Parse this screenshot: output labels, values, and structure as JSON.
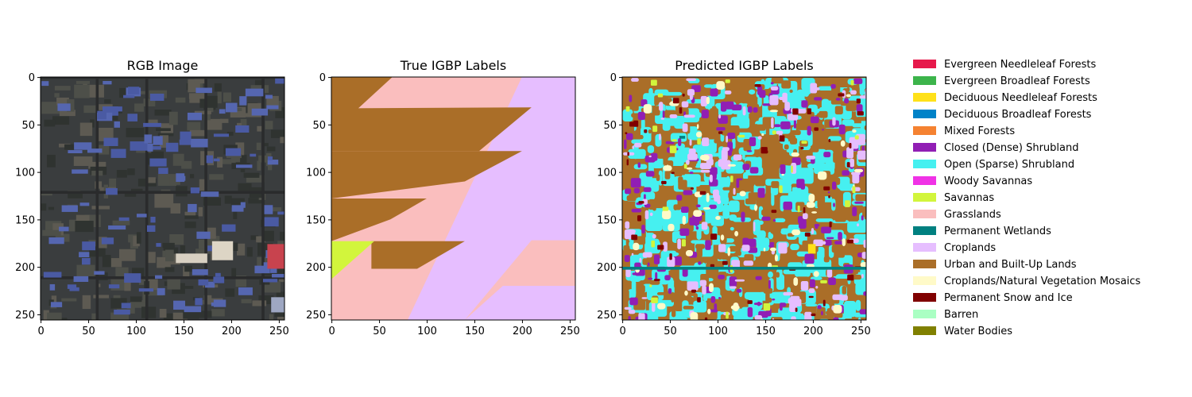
{
  "figure": {
    "panels": [
      {
        "title": "RGB Image"
      },
      {
        "title": "True IGBP Labels"
      },
      {
        "title": "Predicted IGBP Labels"
      }
    ]
  },
  "chart_data": {
    "type": "heatmap",
    "panels": [
      {
        "title": "RGB Image",
        "xticks": [
          0,
          50,
          100,
          150,
          200,
          250
        ],
        "yticks": [
          0,
          50,
          100,
          150,
          200,
          250
        ],
        "xlim": [
          0,
          256
        ],
        "ylim": [
          256,
          0
        ]
      },
      {
        "title": "True IGBP Labels",
        "xticks": [
          0,
          50,
          100,
          150,
          200,
          250
        ],
        "yticks": [
          0,
          50,
          100,
          150,
          200,
          250
        ],
        "xlim": [
          0,
          256
        ],
        "ylim": [
          256,
          0
        ]
      },
      {
        "title": "Predicted IGBP Labels",
        "xticks": [
          0,
          50,
          100,
          150,
          200,
          250
        ],
        "yticks": [
          0,
          50,
          100,
          150,
          200,
          250
        ],
        "xlim": [
          0,
          256
        ],
        "ylim": [
          256,
          0
        ]
      }
    ],
    "legend": [
      {
        "label": "Evergreen Needleleaf Forests",
        "color": "#e6194b"
      },
      {
        "label": "Evergreen Broadleaf Forests",
        "color": "#3cb44b"
      },
      {
        "label": "Deciduous Needleleaf Forests",
        "color": "#ffe119"
      },
      {
        "label": "Deciduous Broadleaf Forests",
        "color": "#0082c8"
      },
      {
        "label": "Mixed Forests",
        "color": "#f58231"
      },
      {
        "label": "Closed (Dense) Shrubland",
        "color": "#911eb4"
      },
      {
        "label": "Open (Sparse) Shrubland",
        "color": "#46f0f0"
      },
      {
        "label": "Woody Savannas",
        "color": "#f032e6"
      },
      {
        "label": "Savannas",
        "color": "#d2f53c"
      },
      {
        "label": "Grasslands",
        "color": "#fabebe"
      },
      {
        "label": "Permanent Wetlands",
        "color": "#008080"
      },
      {
        "label": "Croplands",
        "color": "#e6beff"
      },
      {
        "label": "Urban and Built-Up Lands",
        "color": "#aa6e28"
      },
      {
        "label": "Croplands/Natural Vegetation Mosaics",
        "color": "#fffac8"
      },
      {
        "label": "Permanent Snow and Ice",
        "color": "#800000"
      },
      {
        "label": "Barren",
        "color": "#aaffc3"
      },
      {
        "label": "Water Bodies",
        "color": "#808000"
      }
    ],
    "legend_position": "right"
  }
}
